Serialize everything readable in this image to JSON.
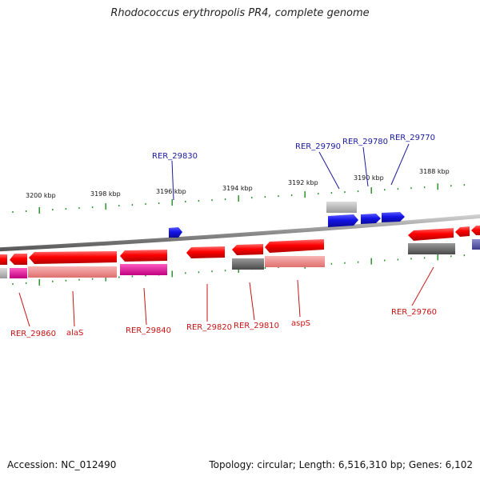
{
  "title": "Rhodococcus erythropolis PR4, complete genome",
  "accession_text": "Accession: NC_012490",
  "summary_text": "Topology: circular; Length: 6,516,310 bp; Genes: 6,102",
  "colors": {
    "backbone": "#8c8c8c",
    "tick": "#1e8c1e",
    "forward_cds": "#ff0000",
    "reverse_cds": "#ff0000",
    "reverse_strand_genes": "#1414e6",
    "blue_label": "#1a1aa0",
    "red_label": "#c81414",
    "magenta_feature": "#e8169a",
    "pink_feature": "#f08c8c",
    "grey_feature": "#6e6e6e",
    "lightgrey_feature": "#b4b4b4",
    "purple_feature": "#5050a0"
  },
  "coordinate_labels": [
    "3200 kbp",
    "3198 kbp",
    "3196 kbp",
    "3194 kbp",
    "3192 kbp",
    "3190 kbp",
    "3188 kbp"
  ],
  "gene_labels_top": [
    "RER_29830",
    "RER_29790",
    "RER_29780",
    "RER_29770"
  ],
  "gene_labels_bottom": [
    "RER_29860",
    "alaS",
    "RER_29840",
    "RER_29820",
    "RER_29810",
    "aspS",
    "RER_29760"
  ]
}
